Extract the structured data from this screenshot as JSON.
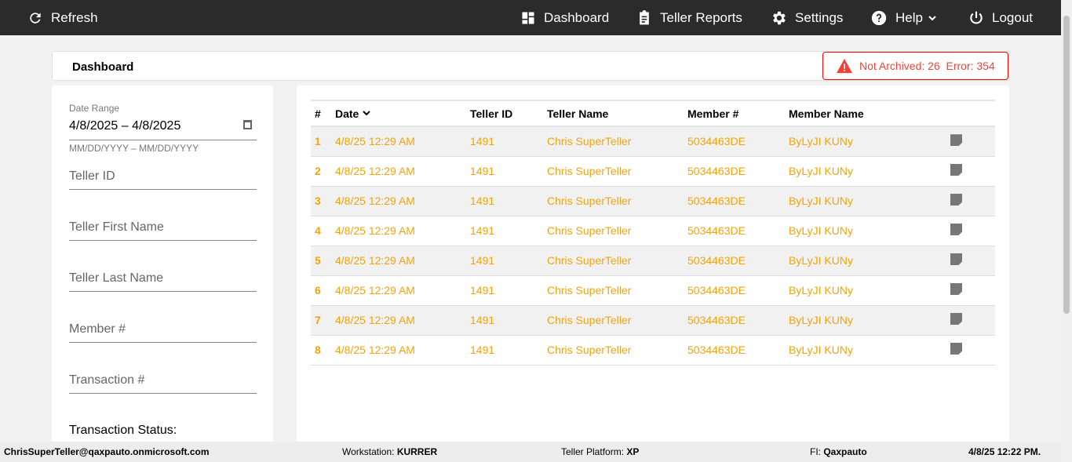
{
  "nav": {
    "refresh": "Refresh",
    "dashboard": "Dashboard",
    "teller_reports": "Teller Reports",
    "settings": "Settings",
    "help": "Help",
    "logout": "Logout"
  },
  "header": {
    "title": "Dashboard",
    "alert": "Not Archived: 26  Error: 354"
  },
  "filters": {
    "date_label": "Date Range",
    "date_value": "4/8/2025 – 4/8/2025",
    "date_hint": "MM/DD/YYYY – MM/DD/YYYY",
    "teller_id": "Teller ID",
    "first_name": "Teller First Name",
    "last_name": "Teller Last Name",
    "member": "Member #",
    "transaction": "Transaction #",
    "status": "Transaction Status:"
  },
  "table": {
    "columns": [
      "#",
      "Date",
      "Teller ID",
      "Teller Name",
      "Member #",
      "Member Name"
    ],
    "rows": [
      {
        "n": "1",
        "date": "4/8/25 12:29 AM",
        "tid": "1491",
        "tname": "Chris SuperTeller",
        "member": "5034463DE",
        "mname": "ByLyJI KUNy"
      },
      {
        "n": "2",
        "date": "4/8/25 12:29 AM",
        "tid": "1491",
        "tname": "Chris SuperTeller",
        "member": "5034463DE",
        "mname": "ByLyJI KUNy"
      },
      {
        "n": "3",
        "date": "4/8/25 12:29 AM",
        "tid": "1491",
        "tname": "Chris SuperTeller",
        "member": "5034463DE",
        "mname": "ByLyJI KUNy"
      },
      {
        "n": "4",
        "date": "4/8/25 12:29 AM",
        "tid": "1491",
        "tname": "Chris SuperTeller",
        "member": "5034463DE",
        "mname": "ByLyJI KUNy"
      },
      {
        "n": "5",
        "date": "4/8/25 12:29 AM",
        "tid": "1491",
        "tname": "Chris SuperTeller",
        "member": "5034463DE",
        "mname": "ByLyJI KUNy"
      },
      {
        "n": "6",
        "date": "4/8/25 12:29 AM",
        "tid": "1491",
        "tname": "Chris SuperTeller",
        "member": "5034463DE",
        "mname": "ByLyJI KUNy"
      },
      {
        "n": "7",
        "date": "4/8/25 12:29 AM",
        "tid": "1491",
        "tname": "Chris SuperTeller",
        "member": "5034463DE",
        "mname": "ByLyJI KUNy"
      },
      {
        "n": "8",
        "date": "4/8/25 12:29 AM",
        "tid": "1491",
        "tname": "Chris SuperTeller",
        "member": "5034463DE",
        "mname": "ByLyJI KUNy"
      }
    ]
  },
  "footer": {
    "user": "ChrisSuperTeller@qaxpauto.onmicrosoft.com",
    "ws_label": "Workstation:",
    "ws": "KURRER",
    "tp_label": "Teller Platform:",
    "tp": "XP",
    "fi_label": "FI:",
    "fi": "Qaxpauto",
    "time": "4/8/25 12:22 PM."
  },
  "colors": {
    "accent": "#f5a20a",
    "topbar": "#2b2b2b",
    "alert": "#f44336"
  }
}
